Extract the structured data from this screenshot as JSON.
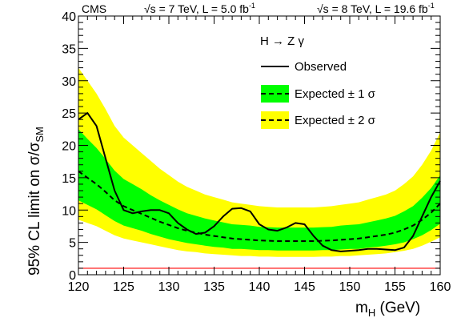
{
  "chart_data": {
    "type": "line",
    "experiment": "CMS",
    "lumi_label_7": "√s = 7 TeV, L = 5.0 fb",
    "lumi_label_8": "√s = 8 TeV, L = 19.6 fb",
    "lumi_superscript": "-1",
    "process": "H → Z γ",
    "ylabel_main": "95% CL limit on σ/σ",
    "ylabel_sub": "SM",
    "xlabel_main": "m",
    "xlabel_sub": "H",
    "xlabel_unit": " (GeV)",
    "xlim": [
      120,
      160
    ],
    "ylim": [
      0,
      40
    ],
    "xticks": [
      120,
      125,
      130,
      135,
      140,
      145,
      150,
      155,
      160
    ],
    "yticks": [
      0,
      5,
      10,
      15,
      20,
      25,
      30,
      35,
      40
    ],
    "legend": [
      {
        "label": "Observed",
        "style": "solid-line"
      },
      {
        "label": "Expected ± 1 σ",
        "style": "dashed-green-band"
      },
      {
        "label": "Expected ± 2 σ",
        "style": "dashed-yellow-band"
      }
    ],
    "colors": {
      "band_2sigma": "#ffff00",
      "band_1sigma": "#00ff00",
      "observed": "#000000",
      "sm_line": "#ff0000"
    },
    "sm_line_y": 1,
    "x": [
      120,
      121,
      122,
      123,
      124,
      125,
      126,
      127,
      128,
      129,
      130,
      131,
      132,
      133,
      134,
      135,
      136,
      137,
      138,
      139,
      140,
      141,
      142,
      143,
      144,
      145,
      146,
      147,
      148,
      149,
      150,
      151,
      152,
      153,
      154,
      155,
      156,
      157,
      158,
      159,
      160
    ],
    "series": [
      {
        "role": "observed",
        "values": [
          24,
          25,
          23,
          18,
          13,
          10,
          9.5,
          9.8,
          10,
          10,
          9.5,
          8,
          7,
          6.3,
          6.5,
          7.5,
          9,
          10.2,
          10.3,
          9.8,
          7.8,
          7,
          6.8,
          7.3,
          8,
          7.8,
          6,
          4.5,
          3.8,
          3.6,
          3.7,
          3.8,
          4,
          4,
          3.9,
          3.8,
          4.2,
          6,
          9,
          12,
          14.5
        ]
      },
      {
        "role": "expected",
        "values": [
          16,
          15,
          14,
          12.8,
          11.5,
          10.6,
          10,
          9.4,
          8.8,
          8.2,
          7.7,
          7.2,
          6.8,
          6.5,
          6.2,
          6,
          5.8,
          5.6,
          5.5,
          5.4,
          5.3,
          5.25,
          5.2,
          5.2,
          5.2,
          5.2,
          5.2,
          5.25,
          5.3,
          5.4,
          5.5,
          5.6,
          5.8,
          6,
          6.2,
          6.5,
          7,
          7.6,
          8.5,
          9.6,
          11
        ]
      },
      {
        "role": "band_1sigma_low",
        "values": [
          11.5,
          10.8,
          10.1,
          9.2,
          8.3,
          7.6,
          7.2,
          6.8,
          6.3,
          5.9,
          5.5,
          5.2,
          4.9,
          4.7,
          4.5,
          4.3,
          4.2,
          4,
          4,
          3.9,
          3.8,
          3.8,
          3.75,
          3.75,
          3.75,
          3.75,
          3.75,
          3.8,
          3.8,
          3.9,
          4,
          4,
          4.2,
          4.3,
          4.5,
          4.7,
          5,
          5.5,
          6.1,
          6.9,
          7.9
        ]
      },
      {
        "role": "band_1sigma_high",
        "values": [
          22.5,
          21,
          19.6,
          17.9,
          16.1,
          14.8,
          14,
          13.2,
          12.3,
          11.5,
          10.8,
          10.1,
          9.5,
          9.1,
          8.7,
          8.4,
          8.1,
          7.8,
          7.7,
          7.6,
          7.4,
          7.35,
          7.3,
          7.3,
          7.3,
          7.3,
          7.3,
          7.35,
          7.4,
          7.6,
          7.7,
          7.8,
          8.1,
          8.4,
          8.7,
          9.1,
          9.8,
          10.6,
          11.9,
          13.4,
          15.4
        ]
      },
      {
        "role": "band_2sigma_low",
        "values": [
          8.5,
          8,
          7.5,
          6.8,
          6.1,
          5.6,
          5.3,
          5,
          4.7,
          4.4,
          4.1,
          3.8,
          3.6,
          3.5,
          3.3,
          3.2,
          3.1,
          3,
          2.9,
          2.9,
          2.8,
          2.8,
          2.75,
          2.75,
          2.75,
          2.75,
          2.75,
          2.8,
          2.8,
          2.9,
          2.9,
          3,
          3.1,
          3.2,
          3.3,
          3.5,
          3.7,
          4,
          4.5,
          5.1,
          5.8
        ]
      },
      {
        "role": "band_2sigma_high",
        "values": [
          32,
          30,
          28,
          25.6,
          23,
          21.2,
          20,
          18.8,
          17.6,
          16.4,
          15.4,
          14.4,
          13.6,
          13,
          12.4,
          12,
          11.6,
          11.2,
          11,
          10.8,
          10.6,
          10.5,
          10.4,
          10.4,
          10.4,
          10.4,
          10.4,
          10.5,
          10.6,
          10.8,
          11,
          11.2,
          11.6,
          12,
          12.4,
          13,
          14,
          15.2,
          17,
          19.2,
          22
        ]
      }
    ]
  }
}
